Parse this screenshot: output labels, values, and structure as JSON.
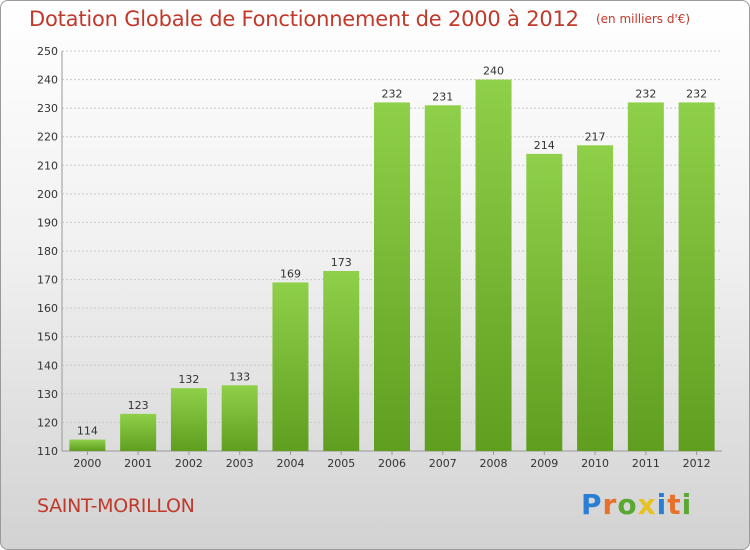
{
  "chart_data": {
    "type": "bar",
    "title": "Dotation Globale de Fonctionnement de 2000 à 2012",
    "subtitle": "(en milliers d'€)",
    "xlabel": "",
    "ylabel": "",
    "categories": [
      "2000",
      "2001",
      "2002",
      "2003",
      "2004",
      "2005",
      "2006",
      "2007",
      "2008",
      "2009",
      "2010",
      "2011",
      "2012"
    ],
    "values": [
      114,
      123,
      132,
      133,
      169,
      173,
      232,
      231,
      240,
      214,
      217,
      232,
      232
    ],
    "ylim": [
      110,
      250
    ],
    "yticks": [
      110,
      120,
      130,
      140,
      150,
      160,
      170,
      180,
      190,
      200,
      210,
      220,
      230,
      240,
      250
    ],
    "grid": true,
    "bar_color": "#7cbf3a",
    "bar_color_dark": "#5e9c1e",
    "data_labels": true
  },
  "footer": {
    "commune": "SAINT-MORILLON",
    "logo_letters": [
      "P",
      "r",
      "o",
      "x",
      "i",
      "t",
      "i"
    ],
    "logo_colors": [
      "#2a7fd4",
      "#e8702a",
      "#5aa832",
      "#e8c31f",
      "#2a7fd4",
      "#e8702a",
      "#5aa832"
    ]
  },
  "colors": {
    "title": "#c0392b",
    "grid": "#c8c8c8",
    "axis_text": "#333333"
  }
}
